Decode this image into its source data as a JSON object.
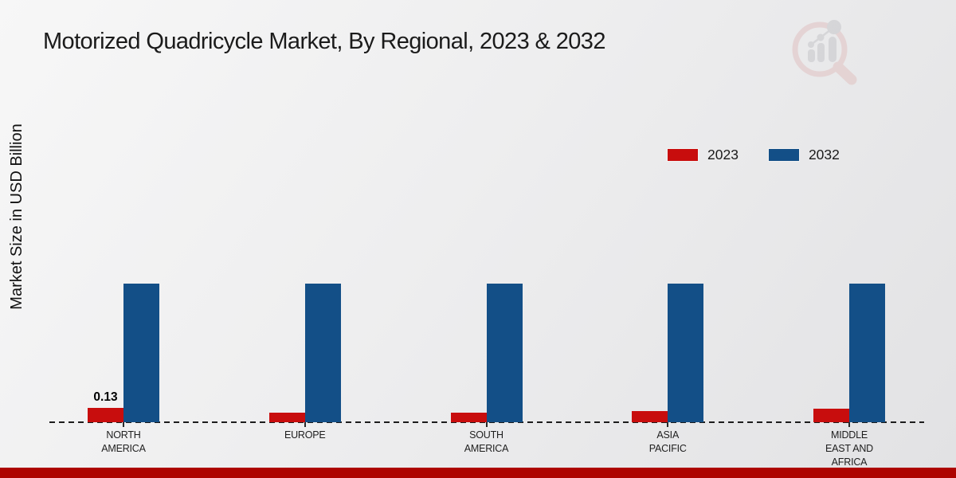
{
  "chart_data": {
    "type": "bar",
    "title": "Motorized Quadricycle Market, By Regional, 2023 & 2032",
    "ylabel": "Market Size in USD Billion",
    "xlabel": "",
    "categories": [
      "NORTH AMERICA",
      "EUROPE",
      "SOUTH AMERICA",
      "ASIA PACIFIC",
      "MIDDLE EAST AND AFRICA"
    ],
    "series": [
      {
        "name": "2023",
        "color": "#C80D0D",
        "values": [
          0.13,
          0.09,
          0.09,
          0.1,
          0.12
        ],
        "data_labels": [
          "0.13",
          "",
          "",
          "",
          ""
        ]
      },
      {
        "name": "2032",
        "color": "#134F87",
        "values": [
          1.26,
          1.26,
          1.26,
          1.26,
          1.26
        ],
        "data_labels": [
          "",
          "",
          "",
          "",
          ""
        ]
      }
    ],
    "ylim": [
      0,
      1.4
    ],
    "grid": false,
    "legend_position": "top-right",
    "baseline_style": "dashed"
  },
  "branding": {
    "watermark_icon": "market-research-future-logo",
    "accent_bar_color": "#AD0400"
  }
}
